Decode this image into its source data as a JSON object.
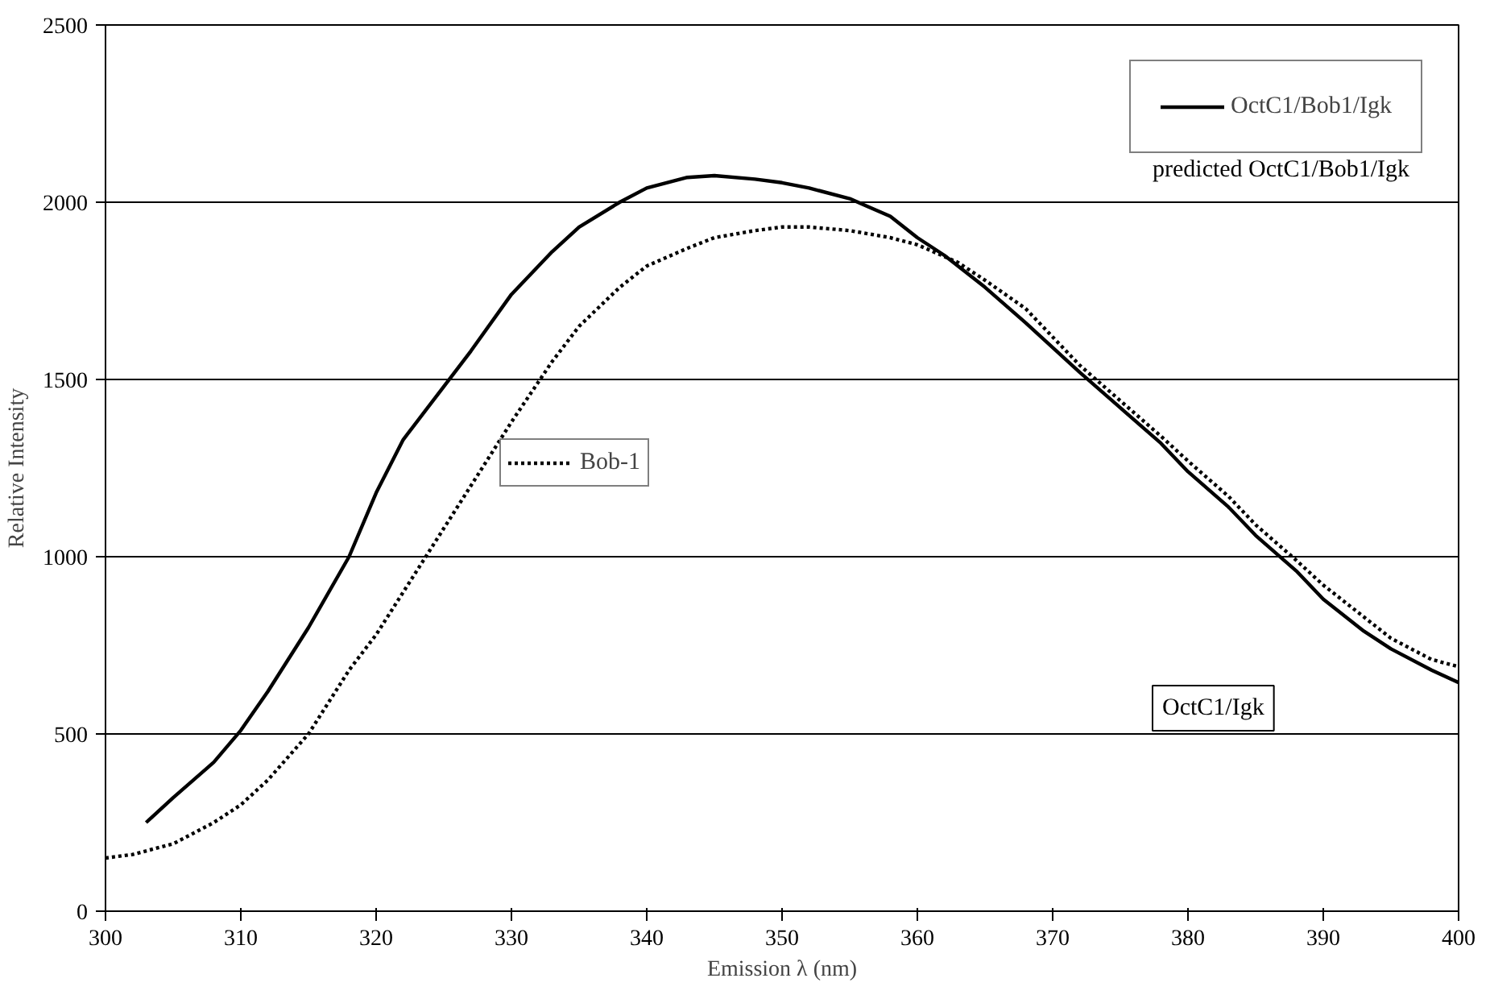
{
  "chart_data": {
    "type": "line",
    "xlabel": "Emission λ (nm)",
    "ylabel": "Relative Intensity",
    "xlim": [
      300,
      400
    ],
    "xticks": [
      300,
      310,
      320,
      330,
      340,
      350,
      360,
      370,
      380,
      390,
      400
    ],
    "ylim": [
      0,
      2500
    ],
    "yticks": [
      0,
      500,
      1000,
      1500,
      2000,
      2500
    ],
    "grid": "y",
    "legend": "top right",
    "annotations": [
      "predicted OctC1/Bob1/Igk",
      "OctC1/Igk"
    ],
    "series": [
      {
        "name": "OctC1/Bob1/Igk",
        "color": "#000000",
        "line_style": "solid",
        "x": [
          303,
          305,
          308,
          310,
          312,
          315,
          318,
          320,
          322,
          325,
          327,
          330,
          333,
          335,
          338,
          340,
          343,
          345,
          348,
          350,
          352,
          355,
          358,
          360,
          362,
          365,
          368,
          370,
          372,
          375,
          378,
          380,
          383,
          385,
          388,
          390,
          393,
          395,
          398,
          400
        ],
        "values": [
          250,
          320,
          420,
          510,
          620,
          800,
          1000,
          1180,
          1330,
          1480,
          1580,
          1740,
          1860,
          1930,
          2000,
          2040,
          2070,
          2075,
          2065,
          2055,
          2040,
          2010,
          1960,
          1900,
          1850,
          1760,
          1660,
          1590,
          1520,
          1420,
          1320,
          1240,
          1140,
          1060,
          960,
          880,
          790,
          740,
          680,
          645
        ]
      },
      {
        "name": "Bob-1",
        "color": "#000000",
        "line_style": "dotted",
        "x": [
          300,
          302,
          305,
          308,
          310,
          312,
          315,
          318,
          320,
          322,
          325,
          327,
          330,
          333,
          335,
          338,
          340,
          343,
          345,
          348,
          350,
          352,
          355,
          358,
          360,
          363,
          365,
          368,
          370,
          372,
          375,
          378,
          380,
          383,
          385,
          388,
          390,
          393,
          395,
          398,
          400
        ],
        "values": [
          150,
          160,
          190,
          250,
          300,
          370,
          500,
          680,
          780,
          900,
          1080,
          1200,
          1380,
          1550,
          1650,
          1760,
          1820,
          1870,
          1900,
          1920,
          1930,
          1930,
          1920,
          1900,
          1880,
          1830,
          1780,
          1700,
          1620,
          1540,
          1440,
          1340,
          1270,
          1170,
          1090,
          990,
          920,
          830,
          770,
          710,
          690
        ]
      }
    ]
  }
}
